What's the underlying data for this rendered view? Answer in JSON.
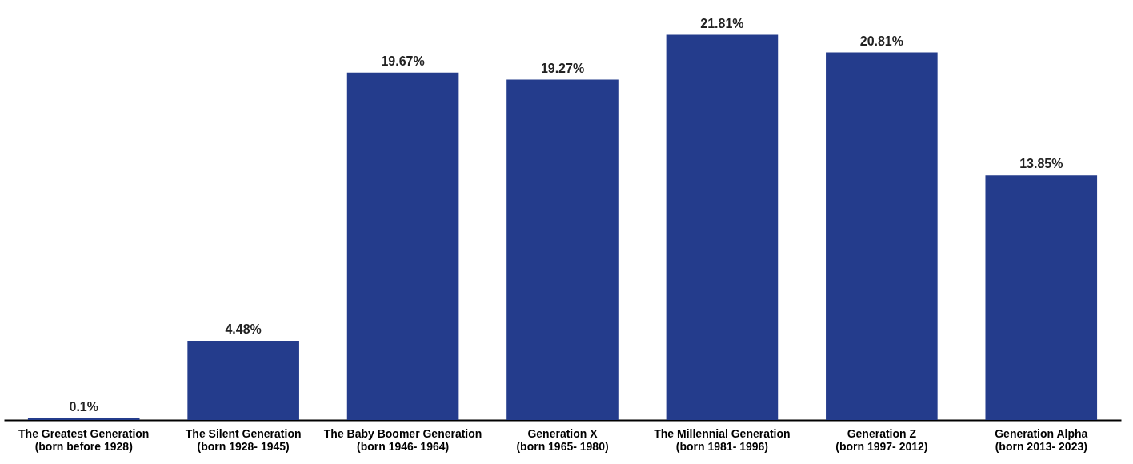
{
  "chart_data": {
    "type": "bar",
    "categories": [
      "The Greatest Generation\n(born before 1928)",
      "The Silent Generation\n(born 1928- 1945)",
      "The Baby Boomer Generation\n(born 1946- 1964)",
      "Generation X\n(born 1965- 1980)",
      "The Millennial Generation\n(born 1981- 1996)",
      "Generation Z\n(born 1997- 2012)",
      "Generation Alpha\n(born 2013- 2023)"
    ],
    "values": [
      0.1,
      4.48,
      19.67,
      19.27,
      21.81,
      20.81,
      13.85
    ],
    "value_labels": [
      "0.1%",
      "4.48%",
      "19.67%",
      "19.27%",
      "21.81%",
      "20.81%",
      "13.85%"
    ],
    "color": "#243c8c"
  }
}
